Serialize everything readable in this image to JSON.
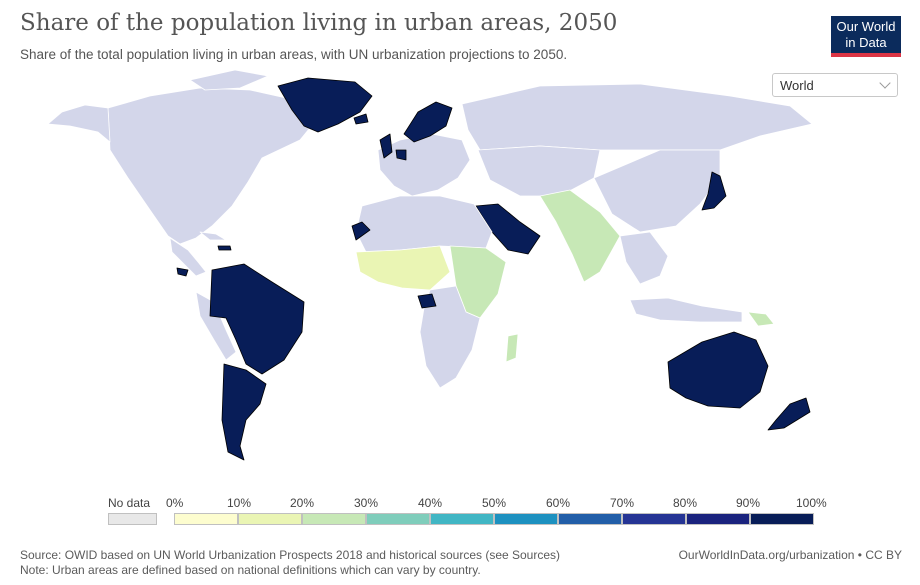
{
  "header": {
    "title": "Share of the population living in urban areas, 2050",
    "subtitle": "Share of the total population living in urban areas, with UN urbanization projections to 2050.",
    "logo_line1": "Our World",
    "logo_line2": "in Data"
  },
  "region_selector": {
    "value": "World"
  },
  "legend": {
    "no_data_label": "No data",
    "no_data_color": "#e8e8e8",
    "bins": [
      {
        "label": "0%",
        "color": "#fdfdcf"
      },
      {
        "label": "10%",
        "color": "#eaf5b4"
      },
      {
        "label": "20%",
        "color": "#c7e8b6"
      },
      {
        "label": "30%",
        "color": "#7fcdbb"
      },
      {
        "label": "40%",
        "color": "#41b6c4"
      },
      {
        "label": "50%",
        "color": "#1d91c0"
      },
      {
        "label": "60%",
        "color": "#225ea8"
      },
      {
        "label": "70%",
        "color": "#253494"
      },
      {
        "label": "80%",
        "color": "#1a237e"
      },
      {
        "label": "90%",
        "color": "#081d58"
      }
    ],
    "end_label": "100%"
  },
  "map_colors": {
    "ocean": "#ffffff",
    "default_land": "#d3d6ea",
    "border": "#ffffff",
    "highlight_border": "#000000"
  },
  "footer": {
    "source": "Source: OWID based on UN World Urbanization Prospects 2018 and historical sources (see Sources)",
    "note": "Note: Urban areas are defined based on national definitions which can vary by country.",
    "link": "OurWorldInData.org/urbanization • CC BY"
  }
}
